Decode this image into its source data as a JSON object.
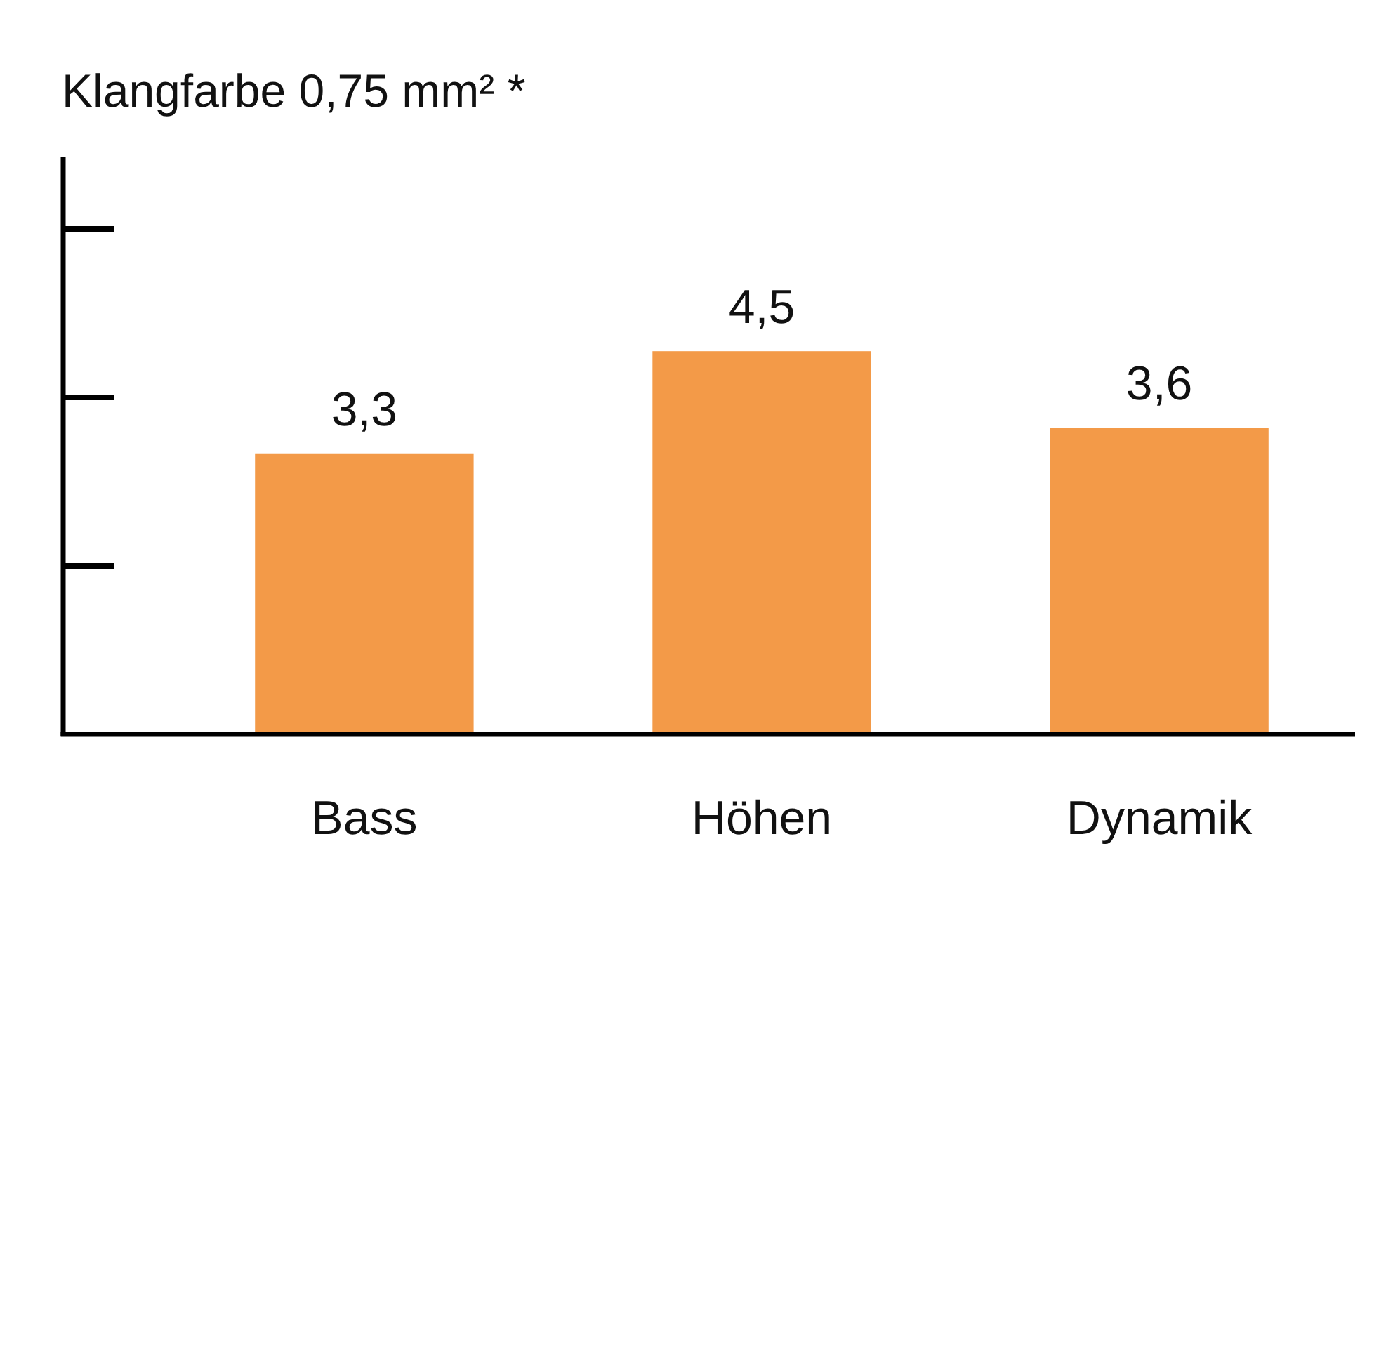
{
  "chart_data": {
    "type": "bar",
    "title": "Klangfarbe 0,75 mm² *",
    "categories": [
      "Bass",
      "Höhen",
      "Dynamik"
    ],
    "values": [
      3.3,
      4.5,
      3.6
    ],
    "color": "#f39a48",
    "value_labels": [
      "3,3",
      "4,5",
      "3,6"
    ],
    "tick_labels": "x"
  }
}
